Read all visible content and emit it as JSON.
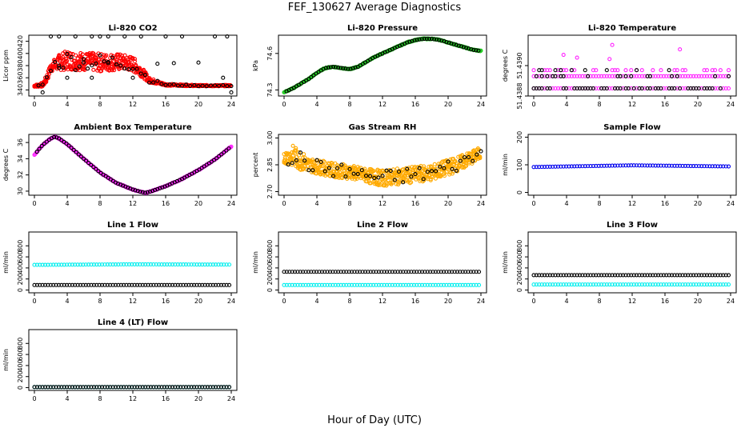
{
  "title": "FEF_130627  Average Diagnostics",
  "xlabel": "Hour of Day (UTC)",
  "colors": {
    "red": "#ff0000",
    "green": "#22cc22",
    "magenta": "#ff22ff",
    "orange": "#ffaa00",
    "blue": "#0000ee",
    "cyan": "#00eeee",
    "black": "#000000"
  },
  "chart_data": [
    {
      "type": "scatter",
      "title": "Li-820 CO2",
      "ylabel": "Licor ppm",
      "xlim": [
        0,
        24
      ],
      "ylim": [
        330,
        430
      ],
      "xticks": [
        0,
        4,
        8,
        12,
        16,
        20,
        24
      ],
      "yticks": [
        340,
        360,
        380,
        400,
        420
      ],
      "series": [
        {
          "color": "red",
          "kind": "band",
          "x": [
            0,
            1,
            1.5,
            2,
            3,
            4,
            6,
            8,
            10,
            11,
            12,
            13,
            14,
            16,
            20,
            24
          ],
          "lo": [
            345,
            345,
            352,
            370,
            372,
            373,
            372,
            370,
            372,
            372,
            370,
            362,
            352,
            347,
            346,
            346
          ],
          "hi": [
            348,
            352,
            365,
            385,
            398,
            405,
            402,
            400,
            400,
            398,
            395,
            380,
            360,
            350,
            348,
            348
          ]
        },
        {
          "color": "black",
          "kind": "points",
          "x": [
            2,
            3,
            5,
            7,
            8,
            9,
            11,
            13,
            16,
            18,
            22,
            23.5
          ],
          "y": [
            428,
            428,
            428,
            428,
            428,
            428,
            428,
            428,
            428,
            428,
            428,
            428
          ]
        },
        {
          "color": "black",
          "kind": "points",
          "x": [
            1,
            3,
            4,
            6,
            7,
            9,
            10,
            12,
            15,
            17,
            20,
            23,
            24
          ],
          "y": [
            336,
            380,
            360,
            385,
            360,
            384,
            382,
            360,
            383,
            384,
            385,
            360,
            336
          ]
        }
      ]
    },
    {
      "type": "scatter",
      "title": "Li-820 Pressure",
      "ylabel": "kPa",
      "xlim": [
        0,
        24
      ],
      "ylim": [
        74.25,
        74.75
      ],
      "xticks": [
        0,
        4,
        8,
        12,
        16,
        20,
        24
      ],
      "yticks": [
        74.3,
        74.6
      ],
      "ytick_labels": [
        "74.3",
        "74.6"
      ],
      "series": [
        {
          "color": "green",
          "kind": "curve",
          "x": [
            0,
            1,
            2,
            3,
            4,
            5,
            6,
            7,
            8,
            9,
            10,
            11,
            12,
            13,
            14,
            15,
            16,
            17,
            18,
            19,
            20,
            21,
            22,
            23,
            24
          ],
          "y": [
            74.28,
            74.31,
            74.35,
            74.39,
            74.44,
            74.48,
            74.49,
            74.48,
            74.47,
            74.49,
            74.53,
            74.57,
            74.6,
            74.63,
            74.66,
            74.69,
            74.71,
            74.72,
            74.72,
            74.71,
            74.69,
            74.67,
            74.65,
            74.63,
            74.62
          ]
        }
      ]
    },
    {
      "type": "scatter",
      "title": "Li-820 Temperature",
      "ylabel": "degrees C",
      "xlim": [
        0,
        24
      ],
      "ylim": [
        51.4388,
        51.4392
      ],
      "xticks": [
        0,
        4,
        8,
        12,
        16,
        20,
        24
      ],
      "yticks": [
        51.4388,
        51.439
      ],
      "ytick_labels": [
        "51.4388",
        "51.4390"
      ],
      "levels": [
        51.43885,
        51.43893,
        51.43897
      ],
      "series": [
        {
          "color": "magenta",
          "kind": "levels"
        },
        {
          "color": "black",
          "kind": "levels"
        }
      ]
    },
    {
      "type": "scatter",
      "title": "Ambient Box Temperature",
      "ylabel": "degrees C",
      "xlim": [
        0,
        24
      ],
      "ylim": [
        29.5,
        37
      ],
      "xticks": [
        0,
        4,
        8,
        12,
        16,
        20,
        24
      ],
      "yticks": [
        30,
        32,
        34,
        36
      ],
      "series": [
        {
          "color": "magenta",
          "kind": "curve",
          "x": [
            0,
            1,
            2,
            2.5,
            3,
            4,
            6,
            8,
            10,
            12,
            13,
            13.5,
            14,
            16,
            18,
            20,
            22,
            24
          ],
          "y": [
            34.5,
            35.7,
            36.5,
            36.7,
            36.5,
            35.8,
            34.0,
            32.3,
            31.0,
            30.2,
            29.9,
            29.8,
            29.9,
            30.6,
            31.5,
            32.6,
            33.9,
            35.5
          ]
        }
      ]
    },
    {
      "type": "scatter",
      "title": "Gas Stream RH",
      "ylabel": "percent",
      "xlim": [
        0,
        24
      ],
      "ylim": [
        2.68,
        3.02
      ],
      "xticks": [
        0,
        4,
        8,
        12,
        16,
        20,
        24
      ],
      "yticks": [
        2.7,
        2.85,
        3.0
      ],
      "ytick_labels": [
        "2.70",
        "2.85",
        "3.00"
      ],
      "series": [
        {
          "color": "orange",
          "kind": "band",
          "x": [
            0,
            1,
            2,
            3,
            4,
            6,
            8,
            10,
            12,
            14,
            16,
            18,
            20,
            22,
            24
          ],
          "lo": [
            2.86,
            2.84,
            2.82,
            2.81,
            2.8,
            2.78,
            2.77,
            2.75,
            2.73,
            2.74,
            2.75,
            2.76,
            2.79,
            2.83,
            2.88
          ],
          "hi": [
            2.92,
            2.96,
            2.93,
            2.89,
            2.88,
            2.86,
            2.85,
            2.83,
            2.82,
            2.83,
            2.84,
            2.85,
            2.88,
            2.91,
            2.95
          ]
        }
      ]
    },
    {
      "type": "scatter",
      "title": "Sample Flow",
      "ylabel": "ml/min",
      "xlim": [
        0,
        24
      ],
      "ylim": [
        -10,
        210
      ],
      "xticks": [
        0,
        4,
        8,
        12,
        16,
        20,
        24
      ],
      "yticks": [
        0,
        100,
        200
      ],
      "series": [
        {
          "color": "blue",
          "kind": "flat",
          "x": [
            0,
            12,
            24
          ],
          "y": [
            92,
            98,
            94
          ]
        }
      ]
    },
    {
      "type": "scatter",
      "title": "Line 1 Flow",
      "ylabel": "ml/min",
      "xlim": [
        0,
        24
      ],
      "ylim": [
        -50,
        1050
      ],
      "xticks": [
        0,
        4,
        8,
        12,
        16,
        20,
        24
      ],
      "yticks": [
        0,
        200,
        400,
        600,
        800
      ],
      "series": [
        {
          "color": "cyan",
          "kind": "flat",
          "x": [
            0,
            12,
            24
          ],
          "y": [
            455,
            465,
            460
          ]
        },
        {
          "color": "black",
          "kind": "flat",
          "x": [
            0,
            24
          ],
          "y": [
            90,
            90
          ]
        }
      ]
    },
    {
      "type": "scatter",
      "title": "Line 2 Flow",
      "ylabel": "ml/min",
      "xlim": [
        0,
        24
      ],
      "ylim": [
        -50,
        1050
      ],
      "xticks": [
        0,
        4,
        8,
        12,
        16,
        20,
        24
      ],
      "yticks": [
        0,
        200,
        400,
        600,
        800
      ],
      "series": [
        {
          "color": "cyan",
          "kind": "flat",
          "x": [
            0,
            24
          ],
          "y": [
            90,
            90
          ]
        },
        {
          "color": "black",
          "kind": "flat",
          "x": [
            0,
            24
          ],
          "y": [
            330,
            330
          ]
        }
      ]
    },
    {
      "type": "scatter",
      "title": "Line 3 Flow",
      "ylabel": "ml/min",
      "xlim": [
        0,
        24
      ],
      "ylim": [
        -50,
        1050
      ],
      "xticks": [
        0,
        4,
        8,
        12,
        16,
        20,
        24
      ],
      "yticks": [
        0,
        200,
        400,
        600,
        800
      ],
      "series": [
        {
          "color": "cyan",
          "kind": "flat",
          "x": [
            0,
            24
          ],
          "y": [
            100,
            100
          ]
        },
        {
          "color": "black",
          "kind": "flat",
          "x": [
            0,
            24
          ],
          "y": [
            270,
            270
          ]
        }
      ]
    },
    {
      "type": "scatter",
      "title": "Line 4 (LT) Flow",
      "ylabel": "ml/min",
      "xlim": [
        0,
        24
      ],
      "ylim": [
        -50,
        1050
      ],
      "xticks": [
        0,
        4,
        8,
        12,
        16,
        20,
        24
      ],
      "yticks": [
        0,
        200,
        400,
        600,
        800
      ],
      "series": [
        {
          "color": "cyan",
          "kind": "flat",
          "x": [
            0,
            24
          ],
          "y": [
            10,
            10
          ]
        },
        {
          "color": "black",
          "kind": "flat",
          "x": [
            0,
            24
          ],
          "y": [
            10,
            10
          ]
        }
      ]
    }
  ]
}
